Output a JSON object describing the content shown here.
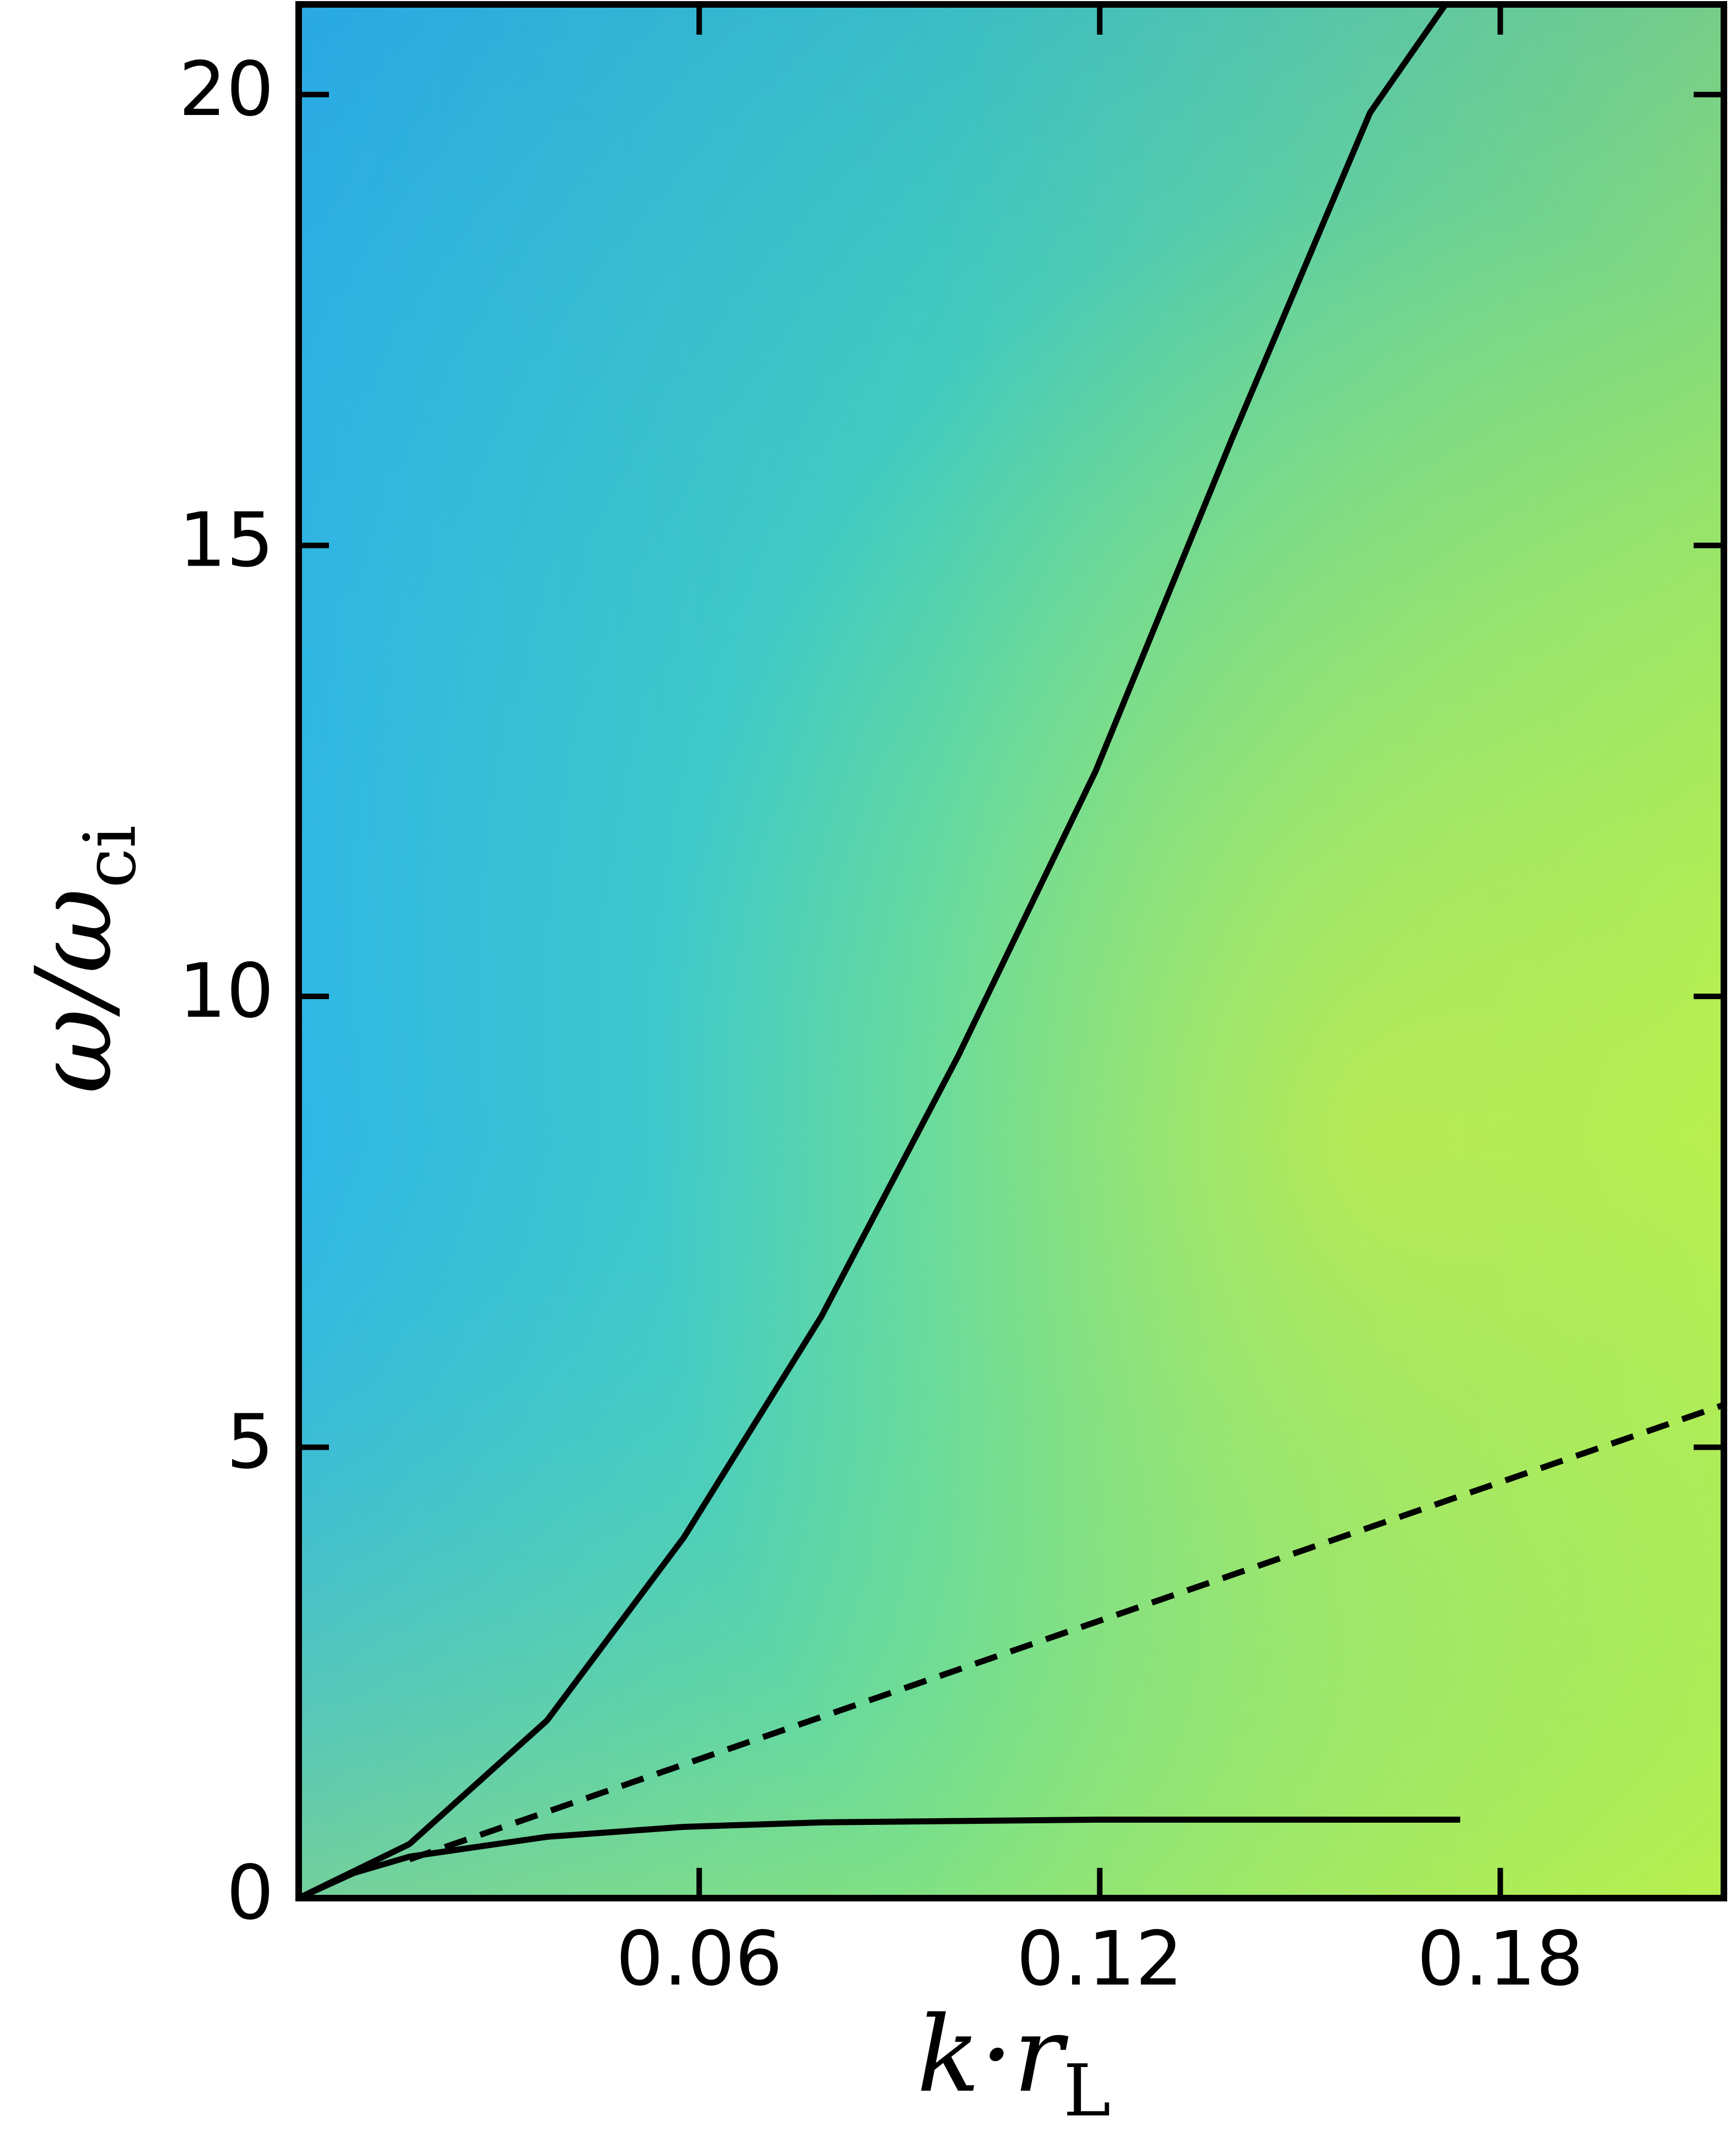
{
  "chart_data": {
    "type": "line",
    "x_label": {
      "main": "k·r",
      "sub": "L"
    },
    "y_label": {
      "main": "ω/ω",
      "sub": "ci"
    },
    "xlim": [
      0,
      0.2135
    ],
    "ylim": [
      0,
      21
    ],
    "xticks": [
      0.06,
      0.12,
      0.18
    ],
    "yticks": [
      0,
      5,
      10,
      15,
      20
    ],
    "series": [
      {
        "color": "#000000",
        "linestyle": "solid",
        "x": [
          0,
          0.0166,
          0.0372,
          0.0577,
          0.0783,
          0.0988,
          0.1194,
          0.1399,
          0.1605,
          0.1718
        ],
        "values": [
          0,
          0.6,
          1.97,
          4.0,
          6.45,
          9.34,
          12.5,
          16.2,
          19.8,
          21
        ]
      },
      {
        "color": "#000000",
        "linestyle": "solid",
        "x": [
          0,
          0.0083,
          0.0166,
          0.0372,
          0.0577,
          0.0783,
          0.1194,
          0.174
        ],
        "values": [
          0,
          0.28,
          0.46,
          0.68,
          0.79,
          0.84,
          0.87,
          0.87
        ]
      },
      {
        "color": "#000000",
        "linestyle": "dashed",
        "x": [
          0.0166,
          0.2135
        ],
        "values": [
          0.43,
          5.47
        ]
      }
    ]
  }
}
